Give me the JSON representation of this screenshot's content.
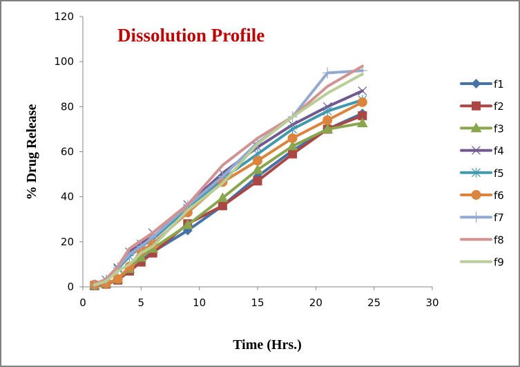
{
  "chart_data": {
    "type": "line",
    "title": "Dissolution Profile",
    "xlabel": "Time (Hrs.)",
    "ylabel": "% Drug Release",
    "xlim": [
      0,
      30
    ],
    "ylim": [
      0,
      120
    ],
    "xticks": [
      0,
      5,
      10,
      15,
      20,
      25,
      30
    ],
    "yticks": [
      0,
      20,
      40,
      60,
      80,
      100,
      120
    ],
    "grid": false,
    "legend_position": "right",
    "x": [
      1,
      2,
      3,
      4,
      5,
      6,
      9,
      12,
      15,
      18,
      21,
      24
    ],
    "series": [
      {
        "name": "f1",
        "color": "#4572A7",
        "marker": "diamond",
        "values": [
          0.5,
          1.2,
          3.0,
          7.5,
          11.5,
          15.5,
          25.0,
          36.0,
          49.0,
          60.5,
          70.0,
          77.0
        ]
      },
      {
        "name": "f2",
        "color": "#AA4643",
        "marker": "square",
        "values": [
          0.5,
          1.2,
          3.0,
          7.0,
          11.0,
          15.0,
          28.0,
          36.0,
          47.0,
          59.0,
          70.0,
          76.0
        ]
      },
      {
        "name": "f3",
        "color": "#89A54E",
        "marker": "triangle",
        "values": [
          0.6,
          1.5,
          3.5,
          8.0,
          13.0,
          17.0,
          27.5,
          39.5,
          52.0,
          62.5,
          70.0,
          72.7
        ]
      },
      {
        "name": "f4",
        "color": "#71588F",
        "marker": "x",
        "values": [
          0.8,
          3.0,
          8.5,
          15.5,
          19.0,
          24.0,
          36.5,
          50.5,
          62.0,
          72.0,
          80.0,
          87.0
        ]
      },
      {
        "name": "f5",
        "color": "#4198AF",
        "marker": "asterisk",
        "values": [
          0.8,
          3.0,
          8.0,
          13.5,
          18.0,
          21.0,
          35.0,
          48.0,
          59.0,
          70.0,
          78.0,
          83.0
        ]
      },
      {
        "name": "f6",
        "color": "#DB843D",
        "marker": "circle",
        "values": [
          1.0,
          1.5,
          3.5,
          9.0,
          16.0,
          19.0,
          33.0,
          46.5,
          56.0,
          66.0,
          74.0,
          82.0
        ]
      },
      {
        "name": "f7",
        "color": "#93A9CF",
        "marker": "plus",
        "values": [
          0.8,
          3.0,
          8.5,
          14.5,
          18.0,
          22.0,
          36.0,
          49.0,
          64.0,
          75.5,
          95.0,
          96.0
        ]
      },
      {
        "name": "f8",
        "color": "#D19392",
        "marker": "none",
        "values": [
          1.0,
          3.5,
          9.0,
          17.0,
          20.5,
          24.0,
          36.5,
          54.0,
          66.0,
          75.5,
          89.0,
          98.0
        ]
      },
      {
        "name": "f9",
        "color": "#B9CD96",
        "marker": "none",
        "values": [
          0.8,
          2.5,
          7.0,
          10.0,
          15.0,
          18.0,
          34.0,
          46.0,
          63.5,
          75.5,
          86.0,
          94.5
        ]
      }
    ]
  }
}
